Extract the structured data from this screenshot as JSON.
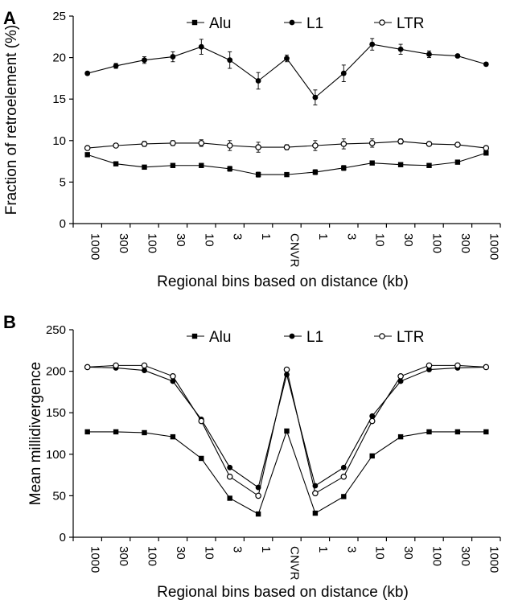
{
  "chart_data": [
    {
      "panel": "A",
      "type": "line",
      "ylabel": "Fraction of retroelement (%)",
      "xlabel": "Regional bins based on distance (kb)",
      "ylim": [
        0,
        25
      ],
      "yticks": [
        0,
        5,
        10,
        15,
        20,
        25
      ],
      "categories": [
        "1000",
        "300",
        "100",
        "30",
        "10",
        "3",
        "1",
        "CNVR",
        "1",
        "3",
        "10",
        "30",
        "100",
        "300",
        "1000"
      ],
      "legend_placement": "top",
      "error_bars": true,
      "series": [
        {
          "name": "Alu",
          "marker": "filled-square",
          "values": [
            8.3,
            7.2,
            6.8,
            7.0,
            7.0,
            6.6,
            5.9,
            5.9,
            6.2,
            6.7,
            7.3,
            7.1,
            7.0,
            7.4,
            8.5
          ],
          "errors": [
            0.2,
            0.2,
            0.2,
            0.2,
            0.2,
            0.3,
            0.3,
            0.2,
            0.3,
            0.3,
            0.2,
            0.2,
            0.2,
            0.2,
            0.2
          ]
        },
        {
          "name": "L1",
          "marker": "filled-circle",
          "values": [
            18.1,
            19.0,
            19.7,
            20.1,
            21.3,
            19.7,
            17.2,
            19.9,
            15.2,
            18.1,
            21.6,
            21.0,
            20.4,
            20.2,
            19.2
          ],
          "errors": [
            0.2,
            0.3,
            0.4,
            0.6,
            0.9,
            1.0,
            1.0,
            0.4,
            0.9,
            1.0,
            0.7,
            0.6,
            0.4,
            0.2,
            0.2
          ]
        },
        {
          "name": "LTR",
          "marker": "open-circle",
          "values": [
            9.1,
            9.4,
            9.6,
            9.7,
            9.7,
            9.4,
            9.2,
            9.2,
            9.4,
            9.6,
            9.7,
            9.9,
            9.6,
            9.5,
            9.1
          ],
          "errors": [
            0.2,
            0.2,
            0.3,
            0.3,
            0.4,
            0.6,
            0.6,
            0.3,
            0.6,
            0.6,
            0.5,
            0.3,
            0.2,
            0.2,
            0.2
          ]
        }
      ]
    },
    {
      "panel": "B",
      "type": "line",
      "ylabel": "Mean millidivergence",
      "xlabel": "Regional bins based on distance (kb)",
      "ylim": [
        0,
        250
      ],
      "yticks": [
        0,
        50,
        100,
        150,
        200,
        250
      ],
      "categories": [
        "1000",
        "300",
        "100",
        "30",
        "10",
        "3",
        "1",
        "CNVR",
        "1",
        "3",
        "10",
        "30",
        "100",
        "300",
        "1000"
      ],
      "legend_placement": "top",
      "error_bars": false,
      "series": [
        {
          "name": "Alu",
          "marker": "filled-square",
          "values": [
            127,
            127,
            126,
            121,
            95,
            47,
            28,
            128,
            29,
            49,
            98,
            121,
            127,
            127,
            127
          ]
        },
        {
          "name": "L1",
          "marker": "filled-circle",
          "values": [
            205,
            204,
            201,
            188,
            142,
            84,
            60,
            196,
            62,
            84,
            146,
            188,
            202,
            204,
            205
          ]
        },
        {
          "name": "LTR",
          "marker": "open-circle",
          "values": [
            205,
            207,
            207,
            194,
            140,
            73,
            50,
            202,
            53,
            73,
            140,
            194,
            207,
            207,
            205
          ]
        }
      ]
    }
  ]
}
